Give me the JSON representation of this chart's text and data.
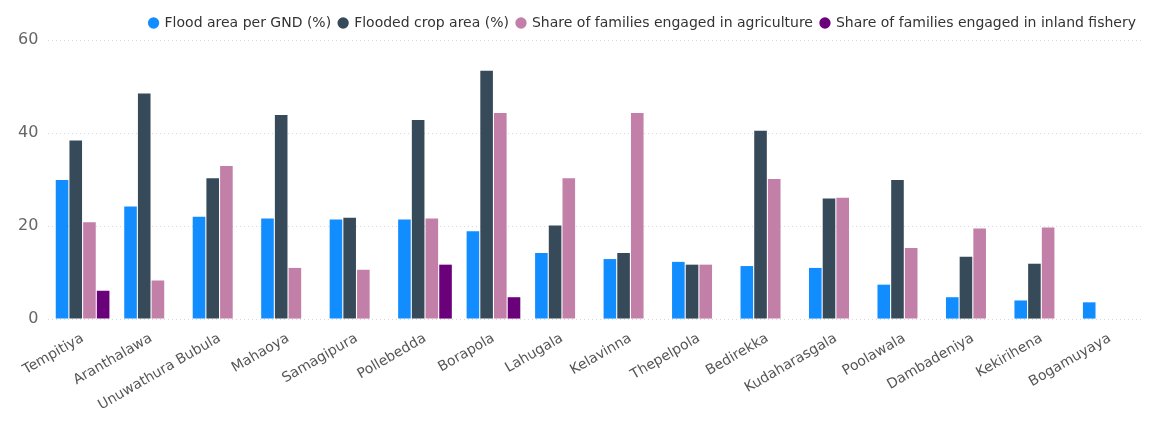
{
  "chart_data": {
    "type": "bar",
    "categories": [
      "Tempitiya",
      "Aranthalawa",
      "Unuwathura Bubula",
      "Mahaoya",
      "Samagipura",
      "Pollebedda",
      "Borapola",
      "Lahugala",
      "Kelavinna",
      "Thepelpola",
      "Bedirekka",
      "Kudaharasgala",
      "Poolawala",
      "Dambadeniya",
      "Kekirihena",
      "Bogamuyaya"
    ],
    "series": [
      {
        "name": "Flood area per GND (%)",
        "color": "#118dff",
        "values": [
          29.9,
          24.2,
          22.0,
          21.6,
          21.4,
          21.4,
          18.9,
          14.2,
          12.9,
          12.3,
          11.4,
          11.0,
          7.4,
          4.7,
          4.0,
          3.6
        ]
      },
      {
        "name": "Flooded crop area (%)",
        "color": "#374a5a",
        "values": [
          38.4,
          48.5,
          30.3,
          43.9,
          21.8,
          42.8,
          53.4,
          20.1,
          14.2,
          11.7,
          40.5,
          25.9,
          29.9,
          13.4,
          11.9,
          null
        ]
      },
      {
        "name": "Share of families engaged in agriculture",
        "color": "#c27fa8",
        "values": [
          20.8,
          8.3,
          32.9,
          11.0,
          10.6,
          21.6,
          44.3,
          30.3,
          44.3,
          11.7,
          30.1,
          26.1,
          15.3,
          19.5,
          19.7,
          null
        ]
      },
      {
        "name": "Share of families engaged in inland fishery",
        "color": "#6b007b",
        "values": [
          6.1,
          null,
          null,
          null,
          null,
          11.7,
          4.7,
          null,
          null,
          null,
          null,
          null,
          null,
          null,
          null,
          null
        ]
      }
    ],
    "ylim": [
      0,
      60
    ],
    "yticks": [
      0,
      20,
      40,
      60
    ],
    "grid": "y",
    "legend": "top right"
  }
}
